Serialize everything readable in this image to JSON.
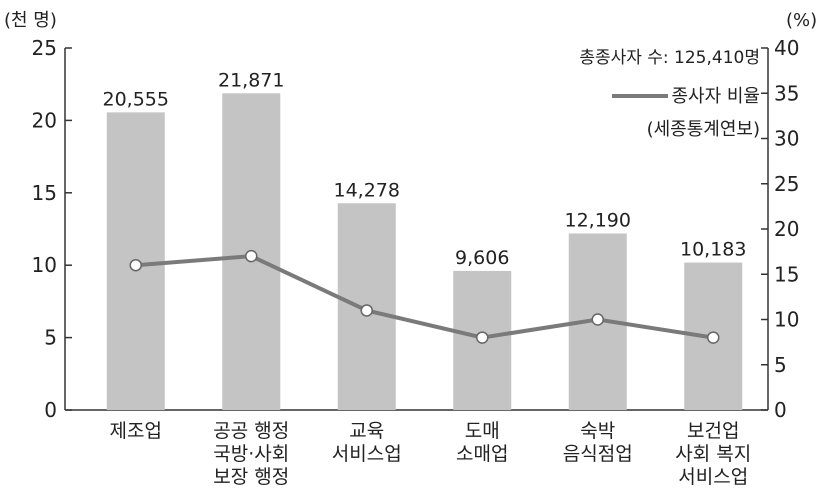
{
  "chart_data": {
    "type": "bar",
    "left_unit_label": "(천 명)",
    "right_unit_label": "(%)",
    "categories": [
      [
        "제조업"
      ],
      [
        "공공 행정",
        "국방·사회",
        "보장 행정"
      ],
      [
        "교육",
        "서비스업"
      ],
      [
        "도매",
        "소매업"
      ],
      [
        "숙박",
        "음식점업"
      ],
      [
        "보건업",
        "사회 복지",
        "서비스업"
      ]
    ],
    "series": [
      {
        "type": "bar",
        "axis": "left",
        "values": [
          20.555,
          21.871,
          14.278,
          9.606,
          12.19,
          10.183
        ],
        "labels": [
          "20,555",
          "21,871",
          "14,278",
          "9,606",
          "12,190",
          "10,183"
        ],
        "color": "#c4c4c4"
      },
      {
        "type": "line",
        "axis": "right",
        "name": "종사자 비율",
        "values": [
          16,
          17,
          11,
          8,
          10,
          8
        ],
        "color": "#7a7a7a"
      }
    ],
    "left_axis": {
      "range": [
        0,
        25
      ],
      "ticks": [
        "0",
        "5",
        "10",
        "15",
        "20",
        "25"
      ]
    },
    "right_axis": {
      "range": [
        0,
        40
      ],
      "ticks": [
        "0",
        "5",
        "10",
        "15",
        "20",
        "25",
        "30",
        "35",
        "40"
      ]
    },
    "annotation_total": "총종사자 수: 125,410명",
    "legend": {
      "label": "종사자 비율",
      "placement": "top-right"
    },
    "source": "(세종통계연보)",
    "grid": false
  }
}
